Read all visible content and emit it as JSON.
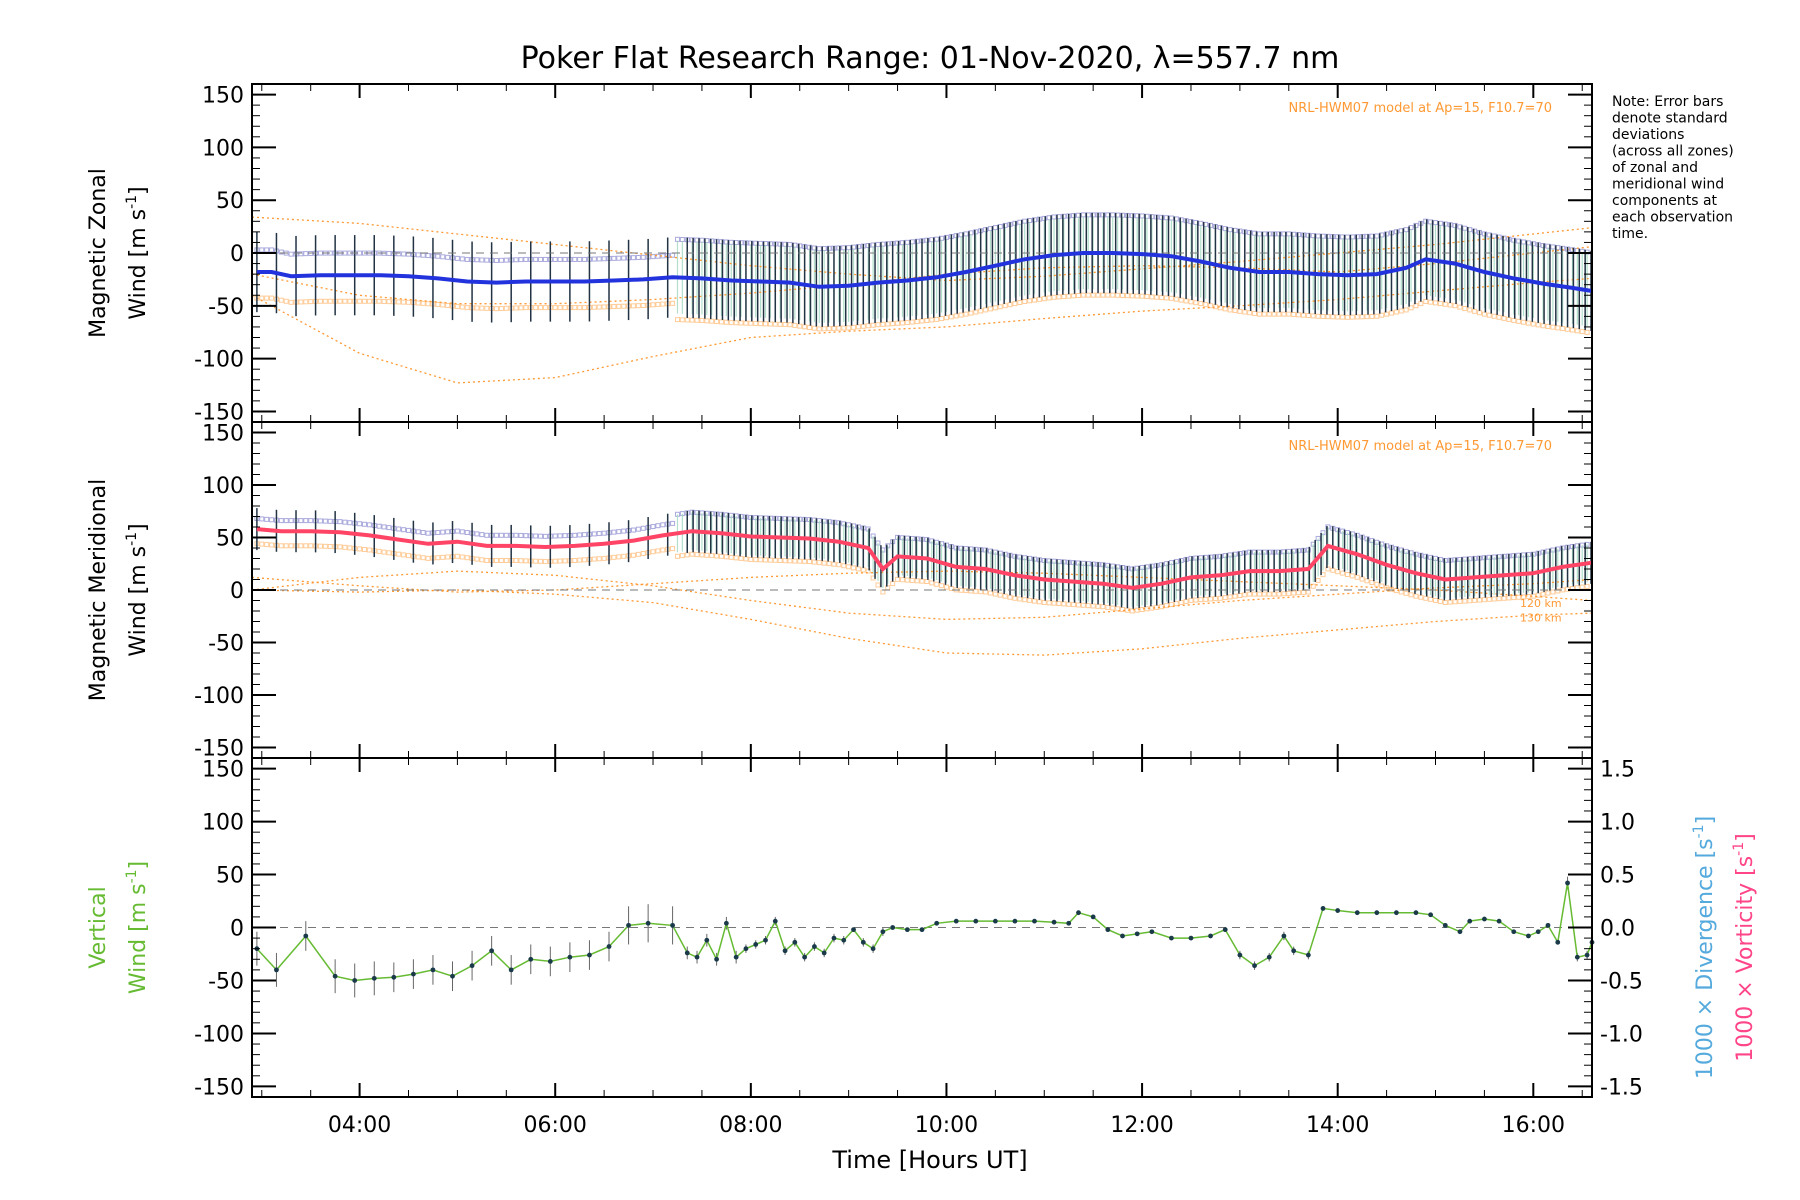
{
  "chart_data": {
    "type": "line",
    "title": "Poker Flat Research Range: 01-Nov-2020, λ=557.7 nm",
    "xlabel": "Time [Hours UT]",
    "xlim": [
      2.9,
      16.6
    ],
    "x_ticks": [
      4,
      6,
      8,
      10,
      12,
      14,
      16
    ],
    "x_tick_labels": [
      "04:00",
      "06:00",
      "08:00",
      "10:00",
      "12:00",
      "14:00",
      "16:00"
    ],
    "note": [
      "Note: Error bars",
      "denote standard",
      "deviations",
      "(across all zones)",
      "of zonal and",
      "meridional wind",
      "components at",
      "each observation",
      "time."
    ],
    "colors": {
      "zonal": "#2233dd",
      "meridional": "#ff4466",
      "vertical": "#66bb33",
      "model": "#ff9933",
      "divergence": "#55aadd",
      "vorticity": "#ff4488",
      "zones_high": "#aaaadd",
      "zones_low": "#ffcc99",
      "errorbar": "#223344"
    },
    "panels": [
      {
        "name": "zonal",
        "ylabel_line1": "Magnetic Zonal",
        "ylabel_line2": "Wind [m s",
        "ylabel_sup": "-1",
        "ylabel_end": "]",
        "ylim": [
          -160,
          160
        ],
        "y_ticks": [
          150,
          100,
          50,
          0,
          -50,
          -100,
          -150
        ],
        "model_label": "NRL-HWM07 model at Ap=15, F10.7=70",
        "model_curves": [
          {
            "x": [
              2.9,
              4,
              5,
              6,
              7,
              8,
              9,
              10,
              11,
              12,
              13,
              14,
              15,
              16,
              16.6
            ],
            "y": [
              34,
              28,
              18,
              8,
              -2,
              -12,
              -20,
              -26,
              -22,
              -15,
              -8,
              0,
              8,
              18,
              24
            ]
          },
          {
            "x": [
              2.9,
              4,
              5,
              6,
              7,
              8,
              9,
              10,
              11,
              12,
              13,
              14,
              15,
              16,
              16.6
            ],
            "y": [
              -20,
              -40,
              -48,
              -48,
              -44,
              -38,
              -30,
              -20,
              -14,
              -12,
              -14,
              -18,
              -10,
              0,
              6
            ]
          },
          {
            "x": [
              2.9,
              4,
              5,
              6,
              7,
              8,
              9,
              10,
              11,
              12,
              13,
              14,
              15,
              16,
              16.6
            ],
            "y": [
              -40,
              -95,
              -123,
              -118,
              -98,
              -80,
              -74,
              -70,
              -62,
              -55,
              -50,
              -44,
              -36,
              -28,
              -24
            ]
          }
        ],
        "series": {
          "name": "zonal",
          "x": [
            2.95,
            3.1,
            3.3,
            3.6,
            3.9,
            4.2,
            4.5,
            4.8,
            5.1,
            5.4,
            5.7,
            6.0,
            6.3,
            6.6,
            6.9,
            7.2,
            7.5,
            7.8,
            8.1,
            8.4,
            8.7,
            9.0,
            9.3,
            9.6,
            9.9,
            10.2,
            10.5,
            10.8,
            11.1,
            11.4,
            11.7,
            12.0,
            12.3,
            12.6,
            12.9,
            13.2,
            13.5,
            13.8,
            14.1,
            14.4,
            14.7,
            14.9,
            15.2,
            15.5,
            15.8,
            16.1,
            16.4,
            16.6
          ],
          "y": [
            -18,
            -18,
            -22,
            -21,
            -21,
            -21,
            -22,
            -24,
            -27,
            -28,
            -27,
            -27,
            -27,
            -26,
            -25,
            -23,
            -24,
            -26,
            -27,
            -28,
            -32,
            -31,
            -28,
            -26,
            -23,
            -18,
            -12,
            -6,
            -2,
            0,
            0,
            -1,
            -3,
            -8,
            -14,
            -18,
            -18,
            -20,
            -21,
            -20,
            -14,
            -6,
            -10,
            -18,
            -24,
            -29,
            -33,
            -36
          ]
        },
        "errorbar_sd": 38,
        "errorbar_step": 0.2
      },
      {
        "name": "meridional",
        "ylabel_line1": "Magnetic Meridional",
        "ylabel_line2": "Wind [m s",
        "ylabel_sup": "-1",
        "ylabel_end": "]",
        "ylim": [
          -160,
          160
        ],
        "y_ticks": [
          150,
          100,
          50,
          0,
          -50,
          -100,
          -150
        ],
        "model_label": "NRL-HWM07 model at Ap=15, F10.7=70",
        "altitude_labels": [
          "120 km",
          "130 km"
        ],
        "model_curves": [
          {
            "x": [
              2.9,
              4,
              5,
              6,
              7,
              8,
              9,
              10,
              11,
              12,
              13,
              14,
              15,
              16,
              16.6
            ],
            "y": [
              12,
              4,
              -2,
              0,
              6,
              12,
              16,
              18,
              16,
              12,
              8,
              4,
              0,
              -6,
              -10
            ]
          },
          {
            "x": [
              2.9,
              4,
              5,
              6,
              7,
              8,
              9,
              10,
              11,
              12,
              13,
              14,
              15,
              16,
              16.6
            ],
            "y": [
              0,
              12,
              18,
              14,
              4,
              -10,
              -22,
              -28,
              -26,
              -18,
              -10,
              -4,
              2,
              6,
              10
            ]
          },
          {
            "x": [
              2.9,
              4,
              5,
              6,
              7,
              8,
              9,
              10,
              11,
              12,
              13,
              14,
              15,
              16,
              16.6
            ],
            "y": [
              0,
              -2,
              0,
              -4,
              -12,
              -28,
              -46,
              -60,
              -62,
              -56,
              -46,
              -38,
              -30,
              -24,
              -22
            ]
          }
        ],
        "series": {
          "name": "meridional",
          "x": [
            2.95,
            3.2,
            3.5,
            3.8,
            4.1,
            4.4,
            4.7,
            5.0,
            5.3,
            5.6,
            5.9,
            6.2,
            6.5,
            6.8,
            7.1,
            7.4,
            7.7,
            8.0,
            8.3,
            8.6,
            8.9,
            9.2,
            9.35,
            9.5,
            9.8,
            10.1,
            10.4,
            10.7,
            11.0,
            11.3,
            11.6,
            11.9,
            12.2,
            12.5,
            12.8,
            13.1,
            13.4,
            13.7,
            13.9,
            14.2,
            14.5,
            14.8,
            15.1,
            15.4,
            15.7,
            16.0,
            16.3,
            16.6
          ],
          "y": [
            58,
            56,
            56,
            55,
            52,
            48,
            44,
            46,
            42,
            42,
            41,
            42,
            44,
            47,
            52,
            56,
            54,
            51,
            50,
            49,
            46,
            40,
            20,
            32,
            30,
            22,
            20,
            14,
            10,
            8,
            6,
            2,
            6,
            12,
            14,
            18,
            18,
            20,
            42,
            34,
            24,
            16,
            10,
            12,
            14,
            16,
            22,
            26
          ]
        },
        "errorbar_sd": 20,
        "errorbar_step": 0.2
      },
      {
        "name": "vertical",
        "ylabel_line1": "Vertical",
        "ylabel_line2": "Wind [m s",
        "ylabel_sup": "-1",
        "ylabel_end": "]",
        "ylim": [
          -160,
          160
        ],
        "y_ticks": [
          150,
          100,
          50,
          0,
          -50,
          -100,
          -150
        ],
        "right_ylim": [
          -1.6,
          1.6
        ],
        "right_y_ticks": [
          1.5,
          1.0,
          0.5,
          0.0,
          -0.5,
          -1.0,
          -1.5
        ],
        "right_ylabel1": "1000 × Divergence [s",
        "right_ylabel2": "1000 × Vorticity [s",
        "right_ylabel_sup": "-1",
        "right_ylabel_end": "]",
        "series": {
          "name": "vertical",
          "x": [
            2.95,
            3.15,
            3.45,
            3.75,
            3.95,
            4.15,
            4.35,
            4.55,
            4.75,
            4.95,
            5.15,
            5.35,
            5.55,
            5.75,
            5.95,
            6.15,
            6.35,
            6.55,
            6.75,
            6.95,
            7.2,
            7.35,
            7.45,
            7.55,
            7.65,
            7.75,
            7.85,
            7.95,
            8.05,
            8.15,
            8.25,
            8.35,
            8.45,
            8.55,
            8.65,
            8.75,
            8.85,
            8.95,
            9.05,
            9.15,
            9.25,
            9.35,
            9.45,
            9.6,
            9.75,
            9.9,
            10.1,
            10.3,
            10.5,
            10.7,
            10.9,
            11.1,
            11.25,
            11.35,
            11.5,
            11.65,
            11.8,
            11.95,
            12.1,
            12.3,
            12.5,
            12.7,
            12.85,
            13.0,
            13.15,
            13.3,
            13.45,
            13.55,
            13.7,
            13.85,
            14.0,
            14.2,
            14.4,
            14.6,
            14.8,
            14.95,
            15.1,
            15.25,
            15.35,
            15.5,
            15.65,
            15.8,
            15.95,
            16.05,
            16.15,
            16.25,
            16.35,
            16.45,
            16.55,
            16.6
          ],
          "y": [
            -20,
            -40,
            -8,
            -46,
            -50,
            -48,
            -47,
            -44,
            -40,
            -46,
            -36,
            -22,
            -40,
            -30,
            -32,
            -28,
            -26,
            -18,
            2,
            4,
            2,
            -24,
            -28,
            -12,
            -30,
            4,
            -28,
            -20,
            -16,
            -12,
            6,
            -22,
            -14,
            -28,
            -18,
            -24,
            -10,
            -12,
            -2,
            -14,
            -20,
            -4,
            0,
            -2,
            -2,
            4,
            6,
            6,
            6,
            6,
            6,
            5,
            4,
            14,
            10,
            -2,
            -8,
            -6,
            -4,
            -10,
            -10,
            -8,
            -2,
            -26,
            -36,
            -28,
            -8,
            -22,
            -26,
            18,
            16,
            14,
            14,
            14,
            14,
            12,
            2,
            -4,
            6,
            8,
            6,
            -4,
            -8,
            -4,
            2,
            -14,
            42,
            -28,
            -26,
            -14
          ],
          "errorbar": [
            16,
            16,
            14,
            16,
            16,
            16,
            14,
            14,
            14,
            14,
            14,
            14,
            14,
            14,
            14,
            14,
            14,
            14,
            18,
            18,
            18,
            6,
            6,
            6,
            6,
            6,
            6,
            4,
            4,
            4,
            4,
            4,
            4,
            4,
            4,
            4,
            4,
            4,
            2,
            4,
            4,
            4,
            2,
            2,
            2,
            2,
            1,
            1,
            1,
            1,
            1,
            1,
            2,
            2,
            2,
            2,
            2,
            2,
            2,
            2,
            2,
            2,
            2,
            4,
            4,
            4,
            4,
            4,
            4,
            2,
            1,
            1,
            1,
            1,
            1,
            2,
            2,
            2,
            2,
            2,
            2,
            2,
            2,
            2,
            2,
            2,
            6,
            4,
            4,
            4
          ]
        }
      }
    ]
  }
}
